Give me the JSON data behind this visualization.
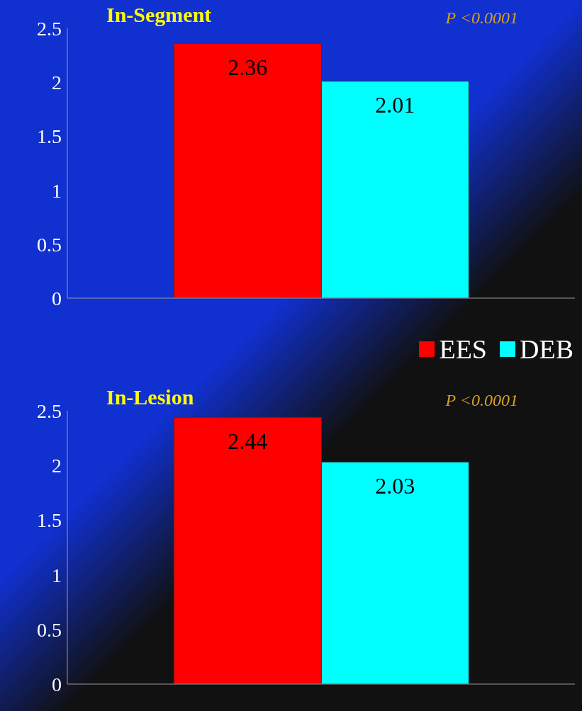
{
  "chart_data": [
    {
      "type": "bar",
      "title": "In-Segment",
      "categories": [
        null
      ],
      "series": [
        {
          "name": "EES",
          "color": "#ff0000",
          "values": [
            2.36
          ]
        },
        {
          "name": "DEB",
          "color": "#00ffff",
          "values": [
            2.01
          ]
        }
      ],
      "ylim": [
        0,
        2.5
      ],
      "yticks": [
        0,
        0.5,
        1,
        1.5,
        2,
        2.5
      ],
      "tick_labels": "y",
      "data_labels": true,
      "grid": false,
      "legend": "bottom right",
      "annotations": [
        "P <0.0001"
      ]
    },
    {
      "type": "bar",
      "title": "In-Lesion",
      "categories": [
        null
      ],
      "series": [
        {
          "color": "#ff0000",
          "values": [
            2.44
          ]
        },
        {
          "color": "#00ffff",
          "values": [
            2.03
          ]
        }
      ],
      "ylim": [
        0,
        2.5
      ],
      "yticks": [
        0,
        0.5,
        1,
        1.5,
        2,
        2.5
      ],
      "tick_labels": "y",
      "data_labels": true,
      "grid": false,
      "annotations": [
        "P <0.0001"
      ]
    }
  ]
}
